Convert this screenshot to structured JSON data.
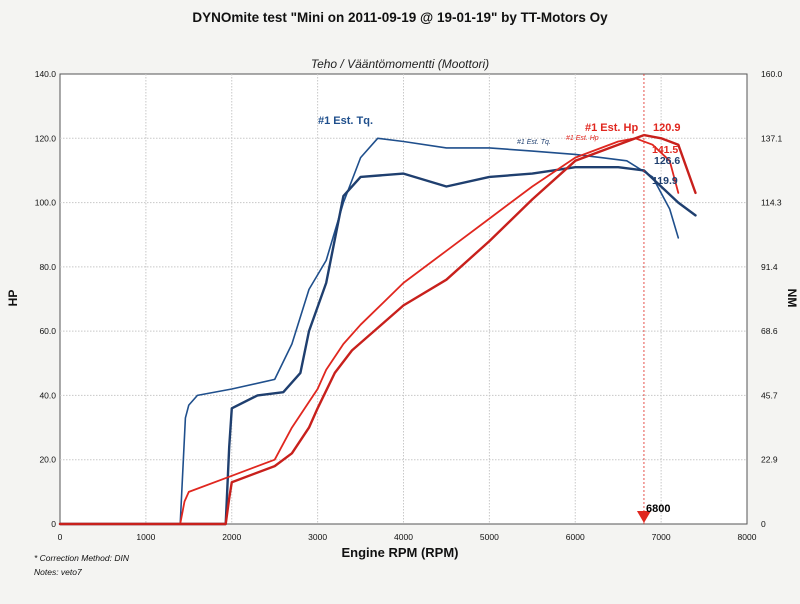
{
  "chart_data": {
    "type": "line",
    "title": "DYNOmite test \"Mini on 2011-09-19 @ 19-01-19\" by TT-Motors Oy",
    "subtitle": "Teho / Vääntömomentti (Moottori)",
    "xlabel": "Engine RPM (RPM)",
    "ylabel": "HP",
    "ylabel_right": "NM",
    "xlim": [
      0,
      8000
    ],
    "ylim": [
      0,
      140
    ],
    "y2lim": [
      0,
      160
    ],
    "x_ticks": [
      "0",
      "1000",
      "2000",
      "3000",
      "4000",
      "5000",
      "6000",
      "7000",
      "8000"
    ],
    "y_ticks": [
      "0",
      "20.0",
      "40.0",
      "60.0",
      "80.0",
      "100.0",
      "120.0",
      "140.0"
    ],
    "y2_ticks": [
      "0",
      "22.9",
      "45.7",
      "68.6",
      "91.4",
      "114.3",
      "137.1",
      "160.0"
    ],
    "grid": true,
    "series": [
      {
        "name": "#1 Est. Tq.",
        "color": "#1f4f8c",
        "x": [
          0,
          1400,
          1460,
          1500,
          1600,
          2000,
          2500,
          2700,
          2900,
          3100,
          3300,
          3500,
          3700,
          4000,
          4500,
          5000,
          5500,
          6000,
          6300,
          6600,
          6900,
          7100,
          7200
        ],
        "y": [
          0,
          0,
          33,
          37,
          40,
          42,
          45,
          56,
          73,
          82,
          100,
          114,
          120,
          119,
          117,
          117,
          116,
          115,
          114,
          113,
          108,
          98,
          89
        ]
      },
      {
        "name": "#1 Est. Tq.",
        "color": "#1f3f6f",
        "x": [
          0,
          1930,
          1970,
          2000,
          2300,
          2600,
          2800,
          2900,
          3100,
          3300,
          3500,
          4000,
          4500,
          5000,
          5500,
          6000,
          6500,
          6800,
          7000,
          7200,
          7400
        ],
        "y": [
          0,
          0,
          24,
          36,
          40,
          41,
          47,
          60,
          75,
          102,
          108,
          109,
          105,
          108,
          109,
          111,
          111,
          110,
          105,
          100,
          96
        ]
      },
      {
        "name": "#1 Est. Hp",
        "color": "#e0271f",
        "x": [
          0,
          1400,
          1450,
          1500,
          2000,
          2500,
          2700,
          2900,
          3000,
          3100,
          3300,
          3500,
          4000,
          4500,
          5000,
          5500,
          6000,
          6500,
          6700,
          6900,
          7100,
          7200
        ],
        "y": [
          0,
          0,
          7,
          10,
          15,
          20,
          30,
          38,
          42,
          48,
          56,
          62,
          75,
          85,
          95,
          105,
          114,
          119,
          120,
          118,
          113,
          103
        ]
      },
      {
        "name": "#1 Est. Hp",
        "color": "#c8201c",
        "x": [
          0,
          1930,
          1970,
          2000,
          2500,
          2700,
          2900,
          3000,
          3200,
          3400,
          4000,
          4500,
          5000,
          5500,
          6000,
          6500,
          6800,
          7000,
          7200,
          7400
        ],
        "y": [
          0,
          0,
          8,
          13,
          18,
          22,
          30,
          36,
          47,
          54,
          68,
          76,
          88,
          101,
          113,
          118,
          121,
          120,
          118,
          103
        ]
      }
    ],
    "annotations": [
      {
        "text": "#1 Est. Tq.",
        "color": "#1f4f8c"
      },
      {
        "text": "#1 Est. Tq.",
        "color": "#1f3f6f"
      },
      {
        "text": "#1 Est. Hp",
        "color": "#e0271f"
      },
      {
        "text": "#1 Est. Hp",
        "color": "#e0271f"
      },
      {
        "text": "120.9",
        "color": "#e0271f"
      },
      {
        "text": "141.5",
        "color": "#e0271f"
      },
      {
        "text": "126.6",
        "color": "#1f3f6f"
      },
      {
        "text": "119.9",
        "color": "#1f3f6f"
      },
      {
        "text": "6800",
        "color": "#000000"
      }
    ],
    "marker_rpm": 6800,
    "marker_color": "#e0271f",
    "footnotes": [
      "* Correction Method: DIN",
      "Notes: veto7"
    ]
  }
}
